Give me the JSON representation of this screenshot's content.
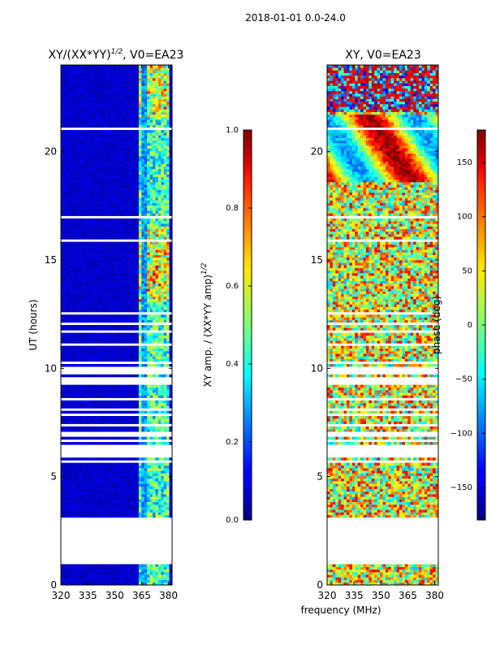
{
  "figure": {
    "suptitle": "2018-01-01 0.0-24.0",
    "shared_xlabel": "frequency (MHz)"
  },
  "chart_data": [
    {
      "type": "heatmap",
      "title_main": "XY/(XX*YY)",
      "title_exp": "1/2",
      "title_suffix": ", V0=EA23",
      "xlabel": "",
      "ylabel": "UT (hours)",
      "xlim": [
        320,
        382
      ],
      "ylim": [
        0,
        24
      ],
      "xticks": [
        320,
        335,
        350,
        365,
        380
      ],
      "yticks": [
        0,
        5,
        10,
        15,
        20
      ],
      "colorbar": {
        "label_main": "XY amp. / (XX*YY amp)",
        "label_exp": "1/2",
        "range": [
          0.0,
          1.0
        ],
        "ticks": [
          "0.0",
          "0.2",
          "0.4",
          "0.6",
          "0.8",
          "1.0"
        ],
        "colormap": "jet"
      }
    },
    {
      "type": "heatmap",
      "title": "XY, V0=EA23",
      "xlabel": "frequency (MHz)",
      "ylabel": "",
      "xlim": [
        320,
        382
      ],
      "ylim": [
        0,
        24
      ],
      "xticks": [
        320,
        335,
        350,
        365,
        380
      ],
      "yticks": [
        0,
        5,
        10,
        15,
        20
      ],
      "colorbar": {
        "label": "phase (deg)",
        "range": [
          -180,
          180
        ],
        "ticks": [
          "-150",
          "-100",
          "-50",
          "0",
          "50",
          "100",
          "150"
        ],
        "colormap": "jet"
      }
    }
  ]
}
